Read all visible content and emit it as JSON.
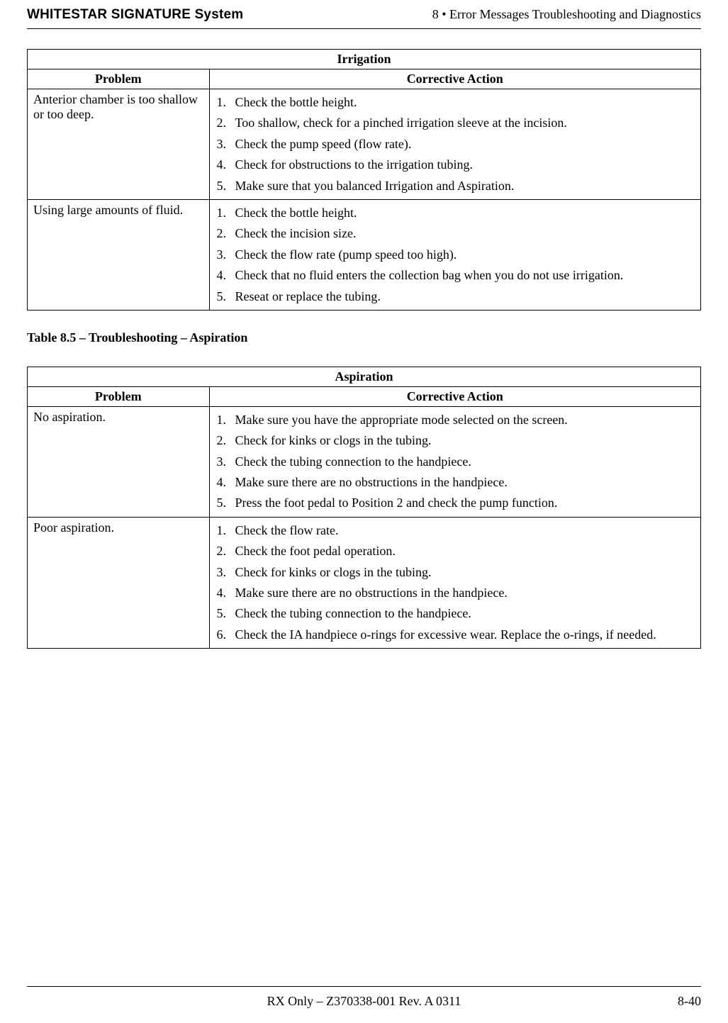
{
  "header": {
    "left": "WHITESTAR SIGNATURE System",
    "right": "8  • Error Messages Troubleshooting and Diagnostics"
  },
  "irrigation": {
    "title": "Irrigation",
    "col_problem": "Problem",
    "col_action": "Corrective Action",
    "rows": [
      {
        "problem": "Anterior chamber is too shallow or too deep.",
        "actions": [
          "Check the bottle height.",
          "Too shallow, check for a pinched irrigation sleeve at the incision.",
          "Check the pump speed (flow rate).",
          "Check for obstructions to the irrigation tubing.",
          "Make sure that you balanced Irrigation and Aspiration."
        ]
      },
      {
        "problem": "Using large amounts of fluid.",
        "actions": [
          "Check the bottle height.",
          "Check the incision size.",
          "Check the flow rate (pump speed too high).",
          "Check that no fluid enters the collection bag when you do not use irrigation.",
          "Reseat or replace the tubing."
        ]
      }
    ]
  },
  "caption_aspiration": "Table 8.5 – Troubleshooting – Aspiration",
  "aspiration": {
    "title": "Aspiration",
    "col_problem": "Problem",
    "col_action": "Corrective Action",
    "rows": [
      {
        "problem": "No aspiration.",
        "actions": [
          "Make sure you have the appropriate mode selected on the screen.",
          "Check for kinks or clogs in the tubing.",
          "Check the tubing connection to the handpiece.",
          "Make sure there are no obstructions in the handpiece.",
          "Press the foot pedal to Position 2 and check the pump function."
        ]
      },
      {
        "problem": "Poor aspiration.",
        "actions": [
          "Check the flow rate.",
          "Check the foot pedal operation.",
          "Check for kinks or clogs in the tubing.",
          "Make sure there are no obstructions in the handpiece.",
          "Check the tubing connection to the handpiece.",
          "Check the IA handpiece o-rings for excessive wear. Replace the o-rings, if needed."
        ]
      }
    ]
  },
  "footer": {
    "center": "RX Only – Z370338-001 Rev. A 0311",
    "right": "8-40"
  }
}
